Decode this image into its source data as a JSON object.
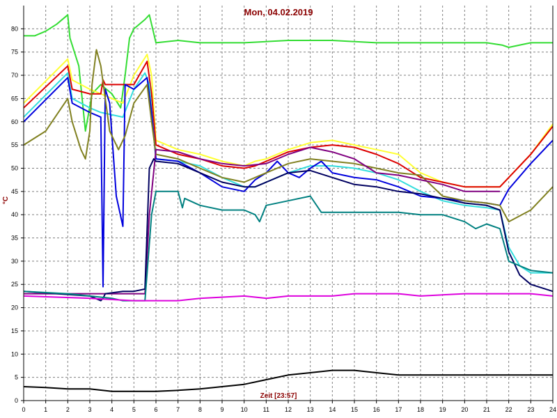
{
  "chart_data": {
    "type": "line",
    "title": "Mon, 04.02.2019",
    "xlabel": "Zeit [23:57]",
    "ylabel": "°C",
    "xlim": [
      0,
      24
    ],
    "ylim": [
      0,
      85
    ],
    "xticks": [
      0,
      1,
      2,
      3,
      4,
      5,
      6,
      7,
      8,
      9,
      10,
      11,
      12,
      13,
      14,
      15,
      16,
      17,
      18,
      19,
      20,
      21,
      22,
      23,
      24
    ],
    "yticks": [
      0,
      5,
      10,
      15,
      20,
      25,
      30,
      35,
      40,
      45,
      50,
      55,
      60,
      65,
      70,
      75,
      80
    ],
    "grid": true,
    "colors": {
      "background": "#ffffff",
      "grid": "#808080",
      "title": "#8b0000"
    },
    "series": [
      {
        "color": "#33dd33",
        "x": [
          0,
          0.5,
          1,
          1.5,
          2,
          2.1,
          2.5,
          2.8,
          3.1,
          3.5,
          4,
          4.4,
          4.6,
          4.8,
          5,
          5.5,
          5.7,
          6,
          7,
          8,
          10,
          12,
          14,
          16,
          18,
          20,
          21,
          21.7,
          22,
          23,
          24
        ],
        "y": [
          78.5,
          78.5,
          79.5,
          81,
          83,
          78,
          72,
          58,
          66,
          68,
          66,
          63,
          70,
          78,
          80,
          82,
          83,
          77,
          77.5,
          77,
          77,
          77.5,
          77.5,
          77,
          77,
          77,
          77,
          76.5,
          76,
          77,
          77
        ]
      },
      {
        "color": "#ffff33",
        "x": [
          0,
          2,
          2.2,
          3,
          3.5,
          4.5,
          5,
          5.6,
          5.8,
          6,
          7,
          8,
          9,
          10,
          10.5,
          11,
          12,
          13,
          14,
          15,
          16,
          17,
          18,
          19,
          20,
          21,
          21.6,
          22,
          23,
          24
        ],
        "y": [
          64,
          73.5,
          69,
          67,
          66,
          64,
          70,
          74.5,
          70,
          56,
          54,
          53,
          51.5,
          50.5,
          51.5,
          52,
          54,
          55.5,
          56,
          55,
          54,
          53,
          49,
          47,
          46,
          46,
          46,
          48,
          53,
          59.5
        ]
      },
      {
        "color": "#dd0000",
        "x": [
          0,
          2,
          2.2,
          3,
          3.5,
          3.6,
          3.7,
          4.5,
          5,
          5.6,
          5.8,
          6,
          7,
          8,
          9,
          10,
          10.5,
          11,
          12,
          13,
          14,
          15,
          16,
          17,
          18,
          19,
          20,
          21,
          21.6,
          22,
          23,
          24
        ],
        "y": [
          63,
          72,
          67,
          66,
          66,
          69,
          68,
          68,
          68,
          73,
          66,
          55,
          53,
          52,
          50.5,
          50,
          50.5,
          51.5,
          53.5,
          54.5,
          55,
          54.5,
          53,
          51,
          48,
          47,
          46,
          46,
          46,
          48,
          53,
          59
        ]
      },
      {
        "color": "#33dddd",
        "x": [
          0,
          2,
          2.2,
          3,
          3.5,
          4.5,
          5,
          5.5,
          5.7,
          6,
          7,
          8,
          9,
          10,
          10.5,
          11,
          12,
          13,
          14,
          15,
          16,
          17,
          18,
          19,
          20,
          21,
          21.6,
          22,
          22.5,
          23,
          24
        ],
        "y": [
          61,
          70.5,
          65,
          63,
          62,
          61,
          67,
          70.5,
          68,
          52,
          51.5,
          50.5,
          48,
          46,
          46,
          47,
          49,
          50.5,
          50.5,
          50,
          49,
          47.5,
          45,
          43,
          42,
          41.5,
          41,
          33,
          29,
          27.5,
          27.5
        ]
      },
      {
        "color": "#0000dd",
        "x": [
          0,
          2,
          2.2,
          3,
          3.5,
          3.6,
          3.7,
          3.9,
          4.2,
          4.5,
          4.6,
          5,
          5.6,
          5.8,
          6,
          7,
          8,
          9,
          10,
          10.5,
          11,
          11.5,
          12,
          12.5,
          13,
          13.5,
          14,
          15,
          16,
          17,
          18,
          19,
          20,
          21,
          21.6,
          22,
          23,
          24
        ],
        "y": [
          60,
          69.5,
          64,
          62,
          61,
          24.5,
          67,
          64,
          44,
          37.5,
          68,
          67,
          69.5,
          62,
          52,
          51.5,
          49,
          46,
          45,
          47.5,
          49,
          51.5,
          49,
          48,
          50,
          51.5,
          49,
          48,
          47.5,
          46,
          44,
          43.5,
          43,
          42.5,
          42,
          45.5,
          51,
          56
        ]
      },
      {
        "color": "#808020",
        "x": [
          0,
          1,
          2,
          2.2,
          2.6,
          2.8,
          3,
          3.1,
          3.3,
          3.5,
          3.9,
          4.3,
          4.6,
          5,
          5.6,
          5.8,
          6,
          7,
          8,
          9,
          10,
          10.5,
          11,
          12,
          13,
          14,
          15,
          16,
          17,
          18,
          19,
          20,
          21,
          21.6,
          22,
          23,
          24
        ],
        "y": [
          55,
          58,
          65,
          60,
          54,
          52,
          58,
          68,
          75.5,
          72,
          58,
          54,
          57,
          64,
          68,
          60,
          53,
          52,
          50,
          48,
          47,
          48,
          49,
          51,
          52,
          51.5,
          51,
          50,
          49,
          48.5,
          44,
          43,
          42.5,
          42,
          38.5,
          41,
          46
        ]
      },
      {
        "color": "#800080",
        "x": [
          0,
          5.5,
          5.7,
          6,
          7,
          8,
          9,
          10,
          11,
          12,
          13,
          14,
          15,
          16,
          17,
          18,
          19,
          20,
          21,
          21.6
        ],
        "y": [
          23,
          23,
          40,
          54,
          53.5,
          52,
          51,
          50.5,
          51,
          53,
          54.5,
          53.5,
          52,
          49,
          48.5,
          47.5,
          46.5,
          45,
          45,
          45
        ]
      },
      {
        "color": "#000060",
        "x": [
          0,
          3,
          3.5,
          3.6,
          3.7,
          4.5,
          5,
          5.5,
          5.7,
          5.9,
          6,
          7,
          8,
          9,
          10,
          10.5,
          11,
          12,
          13,
          14,
          15,
          16,
          17,
          18,
          19,
          20,
          21,
          21.6,
          22,
          22.5,
          23,
          24
        ],
        "y": [
          23.5,
          22.5,
          21.5,
          22,
          23,
          23.5,
          23.5,
          24,
          50,
          52,
          51.5,
          51,
          49,
          47,
          46,
          46,
          47,
          49,
          49.5,
          48,
          46.5,
          46,
          45,
          44.5,
          43.5,
          42.5,
          42,
          41,
          32,
          27,
          25,
          23.5
        ]
      },
      {
        "color": "#008080",
        "x": [
          0,
          2,
          3,
          4,
          4.5,
          5,
          5.5,
          5.8,
          6,
          7,
          7.2,
          7.3,
          8,
          9,
          10,
          10.5,
          10.7,
          11,
          12,
          13,
          13.5,
          14,
          15,
          16,
          17,
          18,
          19,
          20,
          20.5,
          21,
          21.6,
          22,
          23,
          24
        ],
        "y": [
          23.5,
          23,
          22.5,
          22,
          21.5,
          21.5,
          21.5,
          40,
          45,
          45,
          41.5,
          43.5,
          42,
          41,
          41,
          40,
          38.5,
          42,
          43,
          44,
          40.5,
          40.5,
          40.5,
          40.5,
          40.5,
          40,
          40,
          38.5,
          37,
          38,
          37,
          30,
          28,
          27.5
        ]
      },
      {
        "color": "#dd00dd",
        "x": [
          0,
          3,
          5,
          6,
          7,
          8,
          10,
          11,
          12,
          14,
          15,
          16,
          17,
          18,
          20,
          22,
          23,
          24
        ],
        "y": [
          22.5,
          22,
          21.5,
          21.5,
          21.5,
          22,
          22.5,
          22,
          22.5,
          22.5,
          23,
          23,
          23,
          22.5,
          23,
          23,
          23,
          22.5
        ]
      },
      {
        "color": "#000000",
        "x": [
          0,
          1,
          2,
          3,
          4,
          5,
          6,
          7,
          8,
          9,
          10,
          11,
          12,
          13,
          14,
          14.5,
          15,
          16,
          17,
          18,
          19,
          20,
          21,
          22,
          23,
          24
        ],
        "y": [
          3,
          2.8,
          2.5,
          2.5,
          2,
          2,
          2,
          2.2,
          2.5,
          3,
          3.5,
          4.5,
          5.5,
          6,
          6.5,
          6.5,
          6.5,
          6,
          5.5,
          5.5,
          5.5,
          5.5,
          5.5,
          5.5,
          5.5,
          5.5
        ]
      }
    ]
  }
}
